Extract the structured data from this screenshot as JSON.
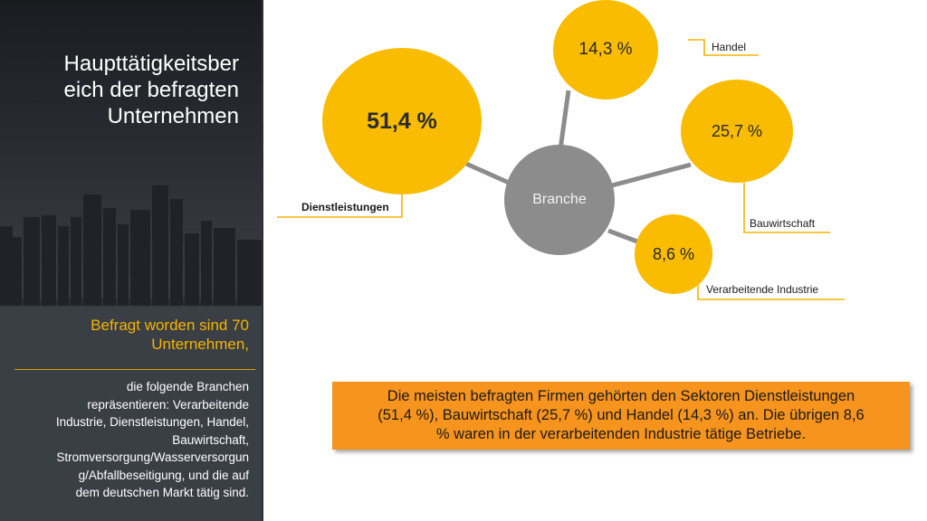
{
  "sidebar": {
    "title": "Haupttätigkeitsbereich der befragten Unternehmen",
    "title_lines": [
      "Haupttätigkeitsber",
      "eich der befragten",
      "Unternehmen"
    ],
    "subtitle_lines": [
      "Befragt worden sind 70",
      "Unternehmen,"
    ],
    "body_lines": [
      "die folgende Branchen",
      "repräsentieren: Verarbeitende",
      "Industrie, Dienstleistungen, Handel,",
      "Bauwirtschaft,",
      "Stromversorgung/Wasserversorgun",
      "g/Abfallbeseitigung, und die auf",
      "dem deutschen Markt tätig sind."
    ]
  },
  "diagram": {
    "hub_label": "Branche",
    "segments": [
      {
        "name": "Dienstleistungen",
        "value_label": "51,4 %",
        "value": 51.4
      },
      {
        "name": "Handel",
        "value_label": "14,3 %",
        "value": 14.3
      },
      {
        "name": "Bauwirtschaft",
        "value_label": "25,7 %",
        "value": 25.7
      },
      {
        "name": "Verarbeitende Industrie",
        "value_label": "8,6 %",
        "value": 8.6
      }
    ]
  },
  "callout": {
    "lines": [
      "Die meisten befragten Firmen gehörten den Sektoren Dienstleistungen",
      "(51,4 %), Bauwirtschaft (25,7 %) und Handel (14,3 %) an. Die übrigen 8,6",
      "% waren in der verarbeitenden Industrie tätige Betriebe."
    ]
  },
  "colors": {
    "bubble": "#f9bc00",
    "hub": "#8c8c8c",
    "callout": "#f7941d",
    "accent": "#f6b300"
  }
}
